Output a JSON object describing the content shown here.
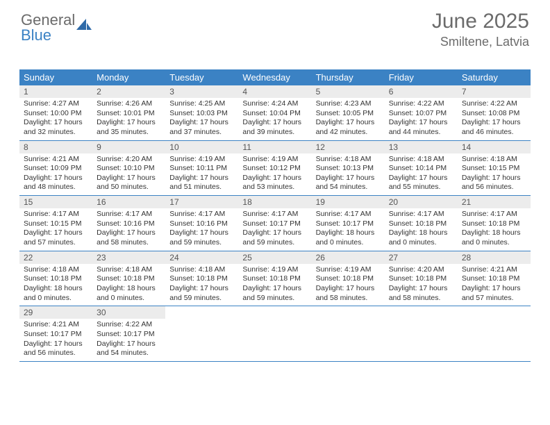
{
  "logo": {
    "text_gray": "General",
    "text_blue": "Blue"
  },
  "title": {
    "month": "June 2025",
    "location": "Smiltene, Latvia"
  },
  "colors": {
    "header_bg": "#3b82c4",
    "header_text": "#ffffff",
    "daynum_bg": "#ececec",
    "border": "#3b82c4",
    "body_text": "#333333"
  },
  "daysOfWeek": [
    "Sunday",
    "Monday",
    "Tuesday",
    "Wednesday",
    "Thursday",
    "Friday",
    "Saturday"
  ],
  "weeks": [
    [
      {
        "n": "1",
        "sunrise": "Sunrise: 4:27 AM",
        "sunset": "Sunset: 10:00 PM",
        "daylight": "Daylight: 17 hours and 32 minutes."
      },
      {
        "n": "2",
        "sunrise": "Sunrise: 4:26 AM",
        "sunset": "Sunset: 10:01 PM",
        "daylight": "Daylight: 17 hours and 35 minutes."
      },
      {
        "n": "3",
        "sunrise": "Sunrise: 4:25 AM",
        "sunset": "Sunset: 10:03 PM",
        "daylight": "Daylight: 17 hours and 37 minutes."
      },
      {
        "n": "4",
        "sunrise": "Sunrise: 4:24 AM",
        "sunset": "Sunset: 10:04 PM",
        "daylight": "Daylight: 17 hours and 39 minutes."
      },
      {
        "n": "5",
        "sunrise": "Sunrise: 4:23 AM",
        "sunset": "Sunset: 10:05 PM",
        "daylight": "Daylight: 17 hours and 42 minutes."
      },
      {
        "n": "6",
        "sunrise": "Sunrise: 4:22 AM",
        "sunset": "Sunset: 10:07 PM",
        "daylight": "Daylight: 17 hours and 44 minutes."
      },
      {
        "n": "7",
        "sunrise": "Sunrise: 4:22 AM",
        "sunset": "Sunset: 10:08 PM",
        "daylight": "Daylight: 17 hours and 46 minutes."
      }
    ],
    [
      {
        "n": "8",
        "sunrise": "Sunrise: 4:21 AM",
        "sunset": "Sunset: 10:09 PM",
        "daylight": "Daylight: 17 hours and 48 minutes."
      },
      {
        "n": "9",
        "sunrise": "Sunrise: 4:20 AM",
        "sunset": "Sunset: 10:10 PM",
        "daylight": "Daylight: 17 hours and 50 minutes."
      },
      {
        "n": "10",
        "sunrise": "Sunrise: 4:19 AM",
        "sunset": "Sunset: 10:11 PM",
        "daylight": "Daylight: 17 hours and 51 minutes."
      },
      {
        "n": "11",
        "sunrise": "Sunrise: 4:19 AM",
        "sunset": "Sunset: 10:12 PM",
        "daylight": "Daylight: 17 hours and 53 minutes."
      },
      {
        "n": "12",
        "sunrise": "Sunrise: 4:18 AM",
        "sunset": "Sunset: 10:13 PM",
        "daylight": "Daylight: 17 hours and 54 minutes."
      },
      {
        "n": "13",
        "sunrise": "Sunrise: 4:18 AM",
        "sunset": "Sunset: 10:14 PM",
        "daylight": "Daylight: 17 hours and 55 minutes."
      },
      {
        "n": "14",
        "sunrise": "Sunrise: 4:18 AM",
        "sunset": "Sunset: 10:15 PM",
        "daylight": "Daylight: 17 hours and 56 minutes."
      }
    ],
    [
      {
        "n": "15",
        "sunrise": "Sunrise: 4:17 AM",
        "sunset": "Sunset: 10:15 PM",
        "daylight": "Daylight: 17 hours and 57 minutes."
      },
      {
        "n": "16",
        "sunrise": "Sunrise: 4:17 AM",
        "sunset": "Sunset: 10:16 PM",
        "daylight": "Daylight: 17 hours and 58 minutes."
      },
      {
        "n": "17",
        "sunrise": "Sunrise: 4:17 AM",
        "sunset": "Sunset: 10:16 PM",
        "daylight": "Daylight: 17 hours and 59 minutes."
      },
      {
        "n": "18",
        "sunrise": "Sunrise: 4:17 AM",
        "sunset": "Sunset: 10:17 PM",
        "daylight": "Daylight: 17 hours and 59 minutes."
      },
      {
        "n": "19",
        "sunrise": "Sunrise: 4:17 AM",
        "sunset": "Sunset: 10:17 PM",
        "daylight": "Daylight: 18 hours and 0 minutes."
      },
      {
        "n": "20",
        "sunrise": "Sunrise: 4:17 AM",
        "sunset": "Sunset: 10:18 PM",
        "daylight": "Daylight: 18 hours and 0 minutes."
      },
      {
        "n": "21",
        "sunrise": "Sunrise: 4:17 AM",
        "sunset": "Sunset: 10:18 PM",
        "daylight": "Daylight: 18 hours and 0 minutes."
      }
    ],
    [
      {
        "n": "22",
        "sunrise": "Sunrise: 4:18 AM",
        "sunset": "Sunset: 10:18 PM",
        "daylight": "Daylight: 18 hours and 0 minutes."
      },
      {
        "n": "23",
        "sunrise": "Sunrise: 4:18 AM",
        "sunset": "Sunset: 10:18 PM",
        "daylight": "Daylight: 18 hours and 0 minutes."
      },
      {
        "n": "24",
        "sunrise": "Sunrise: 4:18 AM",
        "sunset": "Sunset: 10:18 PM",
        "daylight": "Daylight: 17 hours and 59 minutes."
      },
      {
        "n": "25",
        "sunrise": "Sunrise: 4:19 AM",
        "sunset": "Sunset: 10:18 PM",
        "daylight": "Daylight: 17 hours and 59 minutes."
      },
      {
        "n": "26",
        "sunrise": "Sunrise: 4:19 AM",
        "sunset": "Sunset: 10:18 PM",
        "daylight": "Daylight: 17 hours and 58 minutes."
      },
      {
        "n": "27",
        "sunrise": "Sunrise: 4:20 AM",
        "sunset": "Sunset: 10:18 PM",
        "daylight": "Daylight: 17 hours and 58 minutes."
      },
      {
        "n": "28",
        "sunrise": "Sunrise: 4:21 AM",
        "sunset": "Sunset: 10:18 PM",
        "daylight": "Daylight: 17 hours and 57 minutes."
      }
    ],
    [
      {
        "n": "29",
        "sunrise": "Sunrise: 4:21 AM",
        "sunset": "Sunset: 10:17 PM",
        "daylight": "Daylight: 17 hours and 56 minutes."
      },
      {
        "n": "30",
        "sunrise": "Sunrise: 4:22 AM",
        "sunset": "Sunset: 10:17 PM",
        "daylight": "Daylight: 17 hours and 54 minutes."
      },
      {
        "empty": true
      },
      {
        "empty": true
      },
      {
        "empty": true
      },
      {
        "empty": true
      },
      {
        "empty": true
      }
    ]
  ]
}
